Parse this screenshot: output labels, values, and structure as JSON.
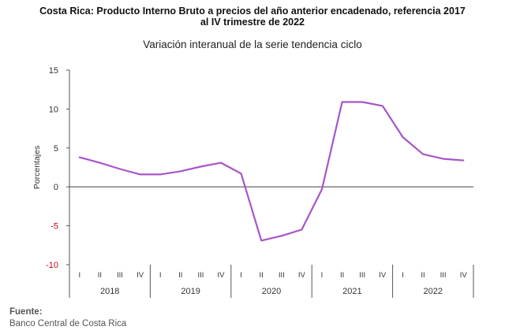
{
  "title_line1": "Costa Rica: Producto Interno Bruto a precios del año anterior encadenado, referencia 2017",
  "title_line2": "al IV trimestre de 2022",
  "subtitle": "Variación interanual de la serie tendencia ciclo",
  "source_label": "Fuente:",
  "source_value": "Banco Central de Costa Rica",
  "chart_data": {
    "type": "line",
    "title": "Variación interanual de la serie tendencia ciclo",
    "ylabel": "Porcentajes",
    "xlabel": "",
    "ylim": [
      -10,
      15
    ],
    "yticks": [
      "15",
      "10",
      "5",
      "0",
      "-5",
      "-10"
    ],
    "negative_tick_color": "#d0021b",
    "line_color": "#a855c8",
    "zero_line_color": "#555555",
    "grid": false,
    "quarters": [
      "I",
      "II",
      "III",
      "IV"
    ],
    "years": [
      "2018",
      "2019",
      "2020",
      "2021",
      "2022"
    ],
    "categories": [
      "2018-I",
      "2018-II",
      "2018-III",
      "2018-IV",
      "2019-I",
      "2019-II",
      "2019-III",
      "2019-IV",
      "2020-I",
      "2020-II",
      "2020-III",
      "2020-IV",
      "2021-I",
      "2021-II",
      "2021-III",
      "2021-IV",
      "2022-I",
      "2022-II",
      "2022-III",
      "2022-IV"
    ],
    "values": [
      3.8,
      3.1,
      2.3,
      1.6,
      1.6,
      2.0,
      2.6,
      3.1,
      1.7,
      -6.9,
      -6.3,
      -5.5,
      -0.3,
      10.9,
      10.9,
      10.4,
      6.4,
      4.2,
      3.6,
      3.4
    ]
  }
}
